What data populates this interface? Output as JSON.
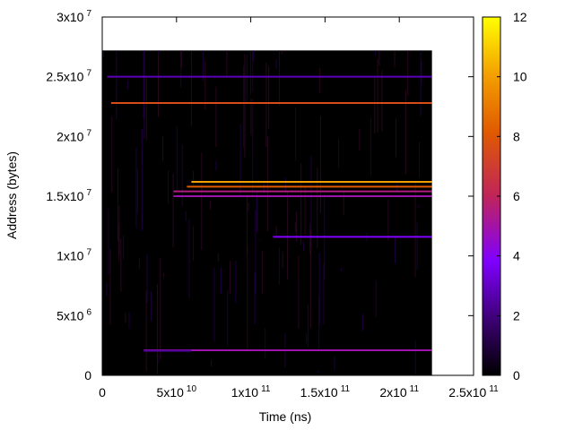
{
  "chart_data": {
    "type": "heatmap",
    "xlabel": "Time (ns)",
    "ylabel": "Address (bytes)",
    "xlim": [
      0,
      250000000000
    ],
    "ylim": [
      0,
      30000000
    ],
    "x_ticks": [
      {
        "value": 0,
        "base": "0",
        "exp": ""
      },
      {
        "value": 50000000000,
        "base": "5x10",
        "exp": "10"
      },
      {
        "value": 100000000000,
        "base": "1x10",
        "exp": "11"
      },
      {
        "value": 150000000000,
        "base": "1.5x10",
        "exp": "11"
      },
      {
        "value": 200000000000,
        "base": "2x10",
        "exp": "11"
      },
      {
        "value": 250000000000,
        "base": "2.5x10",
        "exp": "11"
      }
    ],
    "y_ticks": [
      {
        "value": 0,
        "base": "0",
        "exp": ""
      },
      {
        "value": 5000000,
        "base": "5x10",
        "exp": "6"
      },
      {
        "value": 10000000,
        "base": "1x10",
        "exp": "7"
      },
      {
        "value": 15000000,
        "base": "1.5x10",
        "exp": "7"
      },
      {
        "value": 20000000,
        "base": "2x10",
        "exp": "7"
      },
      {
        "value": 25000000,
        "base": "2.5x10",
        "exp": "7"
      },
      {
        "value": 30000000,
        "base": "3x10",
        "exp": "7"
      }
    ],
    "colorbar": {
      "range": [
        0,
        12
      ],
      "ticks": [
        "0",
        "2",
        "4",
        "6",
        "8",
        "10",
        "12"
      ],
      "palette": [
        "#000000",
        "#3a0070",
        "#8000ff",
        "#c0245a",
        "#e05a00",
        "#f4a000",
        "#ffff00"
      ]
    },
    "data_extent": {
      "x": [
        0,
        222000000000
      ],
      "y": [
        0,
        27200000
      ]
    },
    "lines": [
      {
        "x0": 3000000000,
        "x1": 222000000000,
        "y": 25000000,
        "value": 3.0
      },
      {
        "x0": 6000000000,
        "x1": 222000000000,
        "y": 22800000,
        "value": 7.5
      },
      {
        "x0": 60000000000,
        "x1": 222000000000,
        "y": 16200000,
        "value": 10.0
      },
      {
        "x0": 57000000000,
        "x1": 222000000000,
        "y": 15800000,
        "value": 8.0
      },
      {
        "x0": 48000000000,
        "x1": 222000000000,
        "y": 15400000,
        "value": 5.5
      },
      {
        "x0": 48000000000,
        "x1": 222000000000,
        "y": 15000000,
        "value": 5.0
      },
      {
        "x0": 115000000000,
        "x1": 222000000000,
        "y": 11600000,
        "value": 4.0
      },
      {
        "x0": 28000000000,
        "x1": 222000000000,
        "y": 2100000,
        "value": 5.0
      },
      {
        "x0": 28000000000,
        "x1": 60000000000,
        "y": 2050000,
        "value": 2.5
      }
    ],
    "grid": false,
    "legend": "colorbar-right"
  }
}
